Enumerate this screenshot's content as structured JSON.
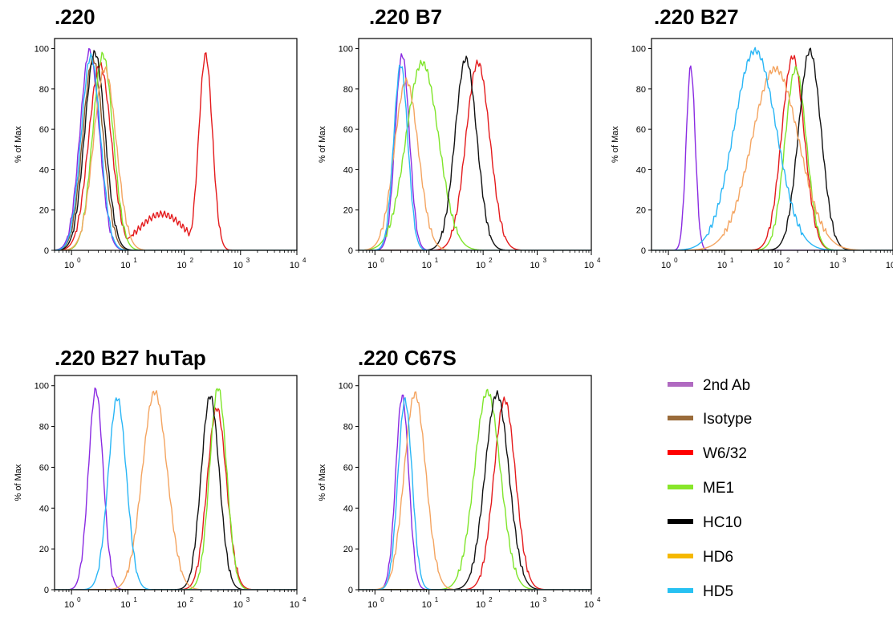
{
  "legend": [
    {
      "label": "2nd Ab",
      "color": "#b06ac1"
    },
    {
      "label": "Isotype",
      "color": "#9a6b3a"
    },
    {
      "label": "W6/32",
      "color": "#ff0000"
    },
    {
      "label": "ME1",
      "color": "#88e62a"
    },
    {
      "label": "HC10",
      "color": "#000000"
    },
    {
      "label": "HD6",
      "color": "#f5b800"
    },
    {
      "label": "HD5",
      "color": "#27c1f2"
    }
  ],
  "chart_data": [
    {
      "type": "line",
      "title": ".220",
      "ylabel": "% of Max",
      "x_scale": "log",
      "xlim": [
        0.5,
        10000
      ],
      "ylim": [
        0,
        105
      ],
      "x_tick_labels": [
        "10^0",
        "10^1",
        "10^2",
        "10^3",
        "10^4"
      ],
      "y_tick_labels": [
        "0",
        "20",
        "40",
        "60",
        "80",
        "100"
      ],
      "series": [
        {
          "name": "2nd Ab",
          "color": "#8a2be2",
          "peaks": [
            {
              "center": 2.1,
              "width": 0.17,
              "height": 99
            }
          ]
        },
        {
          "name": "Isotype",
          "color": "#8b5a2b",
          "peaks": [
            {
              "center": 2.4,
              "width": 0.18,
              "height": 95
            }
          ]
        },
        {
          "name": "W6/32",
          "color": "#e41a1c",
          "peaks": [
            {
              "center": 240,
              "width": 0.12,
              "height": 97
            },
            {
              "center": 40,
              "width": 0.4,
              "height": 18
            },
            {
              "center": 3.2,
              "width": 0.2,
              "height": 92
            }
          ]
        },
        {
          "name": "ME1",
          "color": "#7fe52a",
          "peaks": [
            {
              "center": 3.6,
              "width": 0.18,
              "height": 97
            }
          ]
        },
        {
          "name": "HC10",
          "color": "#111111",
          "peaks": [
            {
              "center": 2.6,
              "width": 0.18,
              "height": 98
            }
          ]
        },
        {
          "name": "HD6",
          "color": "#f4a460",
          "peaks": [
            {
              "center": 3.9,
              "width": 0.2,
              "height": 90
            }
          ]
        },
        {
          "name": "HD5",
          "color": "#29b6f6",
          "peaks": [
            {
              "center": 2.2,
              "width": 0.17,
              "height": 96
            }
          ]
        }
      ]
    },
    {
      "type": "line",
      "title": ".220 B7",
      "ylabel": "% of Max",
      "x_scale": "log",
      "xlim": [
        0.5,
        10000
      ],
      "ylim": [
        0,
        105
      ],
      "x_tick_labels": [
        "10^0",
        "10^1",
        "10^2",
        "10^3",
        "10^4"
      ],
      "y_tick_labels": [
        "0",
        "20",
        "40",
        "60",
        "80",
        "100"
      ],
      "series": [
        {
          "name": "2nd Ab",
          "color": "#8a2be2",
          "peaks": [
            {
              "center": 3.2,
              "width": 0.13,
              "height": 97
            }
          ]
        },
        {
          "name": "W6/32",
          "color": "#e41a1c",
          "peaks": [
            {
              "center": 80,
              "width": 0.22,
              "height": 93
            }
          ]
        },
        {
          "name": "ME1",
          "color": "#7fe52a",
          "peaks": [
            {
              "center": 7.5,
              "width": 0.3,
              "height": 93
            }
          ]
        },
        {
          "name": "HC10",
          "color": "#111111",
          "peaks": [
            {
              "center": 48,
              "width": 0.2,
              "height": 95
            }
          ]
        },
        {
          "name": "HD6",
          "color": "#f4a460",
          "peaks": [
            {
              "center": 3.8,
              "width": 0.22,
              "height": 84
            }
          ]
        },
        {
          "name": "HD5",
          "color": "#29b6f6",
          "peaks": [
            {
              "center": 3.0,
              "width": 0.13,
              "height": 92
            }
          ]
        }
      ]
    },
    {
      "type": "line",
      "title": ".220 B27",
      "ylabel": "% of Max",
      "x_scale": "log",
      "xlim": [
        0.5,
        10000
      ],
      "ylim": [
        0,
        105
      ],
      "x_tick_labels": [
        "10^0",
        "10^1",
        "10^2",
        "10^3",
        "10^4"
      ],
      "y_tick_labels": [
        "0",
        "20",
        "40",
        "60",
        "80",
        "100"
      ],
      "series": [
        {
          "name": "2nd Ab",
          "color": "#8a2be2",
          "peaks": [
            {
              "center": 2.5,
              "width": 0.08,
              "height": 91
            }
          ]
        },
        {
          "name": "W6/32",
          "color": "#e41a1c",
          "peaks": [
            {
              "center": 165,
              "width": 0.2,
              "height": 96
            }
          ]
        },
        {
          "name": "ME1",
          "color": "#7fe52a",
          "peaks": [
            {
              "center": 185,
              "width": 0.19,
              "height": 90
            }
          ]
        },
        {
          "name": "HC10",
          "color": "#111111",
          "peaks": [
            {
              "center": 330,
              "width": 0.2,
              "height": 99
            }
          ]
        },
        {
          "name": "HD6",
          "color": "#f4a460",
          "peaks": [
            {
              "center": 80,
              "width": 0.42,
              "height": 90
            }
          ]
        },
        {
          "name": "HD5",
          "color": "#29b6f6",
          "peaks": [
            {
              "center": 35,
              "width": 0.38,
              "height": 99
            }
          ]
        }
      ]
    },
    {
      "type": "line",
      "title": ".220 B27 huTap",
      "ylabel": "% of Max",
      "x_scale": "log",
      "xlim": [
        0.5,
        10000
      ],
      "ylim": [
        0,
        105
      ],
      "x_tick_labels": [
        "10^0",
        "10^1",
        "10^2",
        "10^3",
        "10^4"
      ],
      "y_tick_labels": [
        "0",
        "20",
        "40",
        "60",
        "80",
        "100"
      ],
      "series": [
        {
          "name": "2nd Ab",
          "color": "#8a2be2",
          "peaks": [
            {
              "center": 2.7,
              "width": 0.13,
              "height": 98
            }
          ]
        },
        {
          "name": "W6/32",
          "color": "#e41a1c",
          "peaks": [
            {
              "center": 380,
              "width": 0.17,
              "height": 89
            }
          ]
        },
        {
          "name": "ME1",
          "color": "#7fe52a",
          "peaks": [
            {
              "center": 400,
              "width": 0.15,
              "height": 99
            }
          ]
        },
        {
          "name": "HC10",
          "color": "#111111",
          "peaks": [
            {
              "center": 290,
              "width": 0.16,
              "height": 95
            }
          ]
        },
        {
          "name": "HD6",
          "color": "#f4a460",
          "peaks": [
            {
              "center": 30,
              "width": 0.22,
              "height": 97
            }
          ]
        },
        {
          "name": "HD5",
          "color": "#29b6f6",
          "peaks": [
            {
              "center": 6.5,
              "width": 0.16,
              "height": 94
            }
          ]
        }
      ]
    },
    {
      "type": "line",
      "title": ".220 C67S",
      "ylabel": "% of Max",
      "x_scale": "log",
      "xlim": [
        0.5,
        10000
      ],
      "ylim": [
        0,
        105
      ],
      "x_tick_labels": [
        "10^0",
        "10^1",
        "10^2",
        "10^3",
        "10^4"
      ],
      "y_tick_labels": [
        "0",
        "20",
        "40",
        "60",
        "80",
        "100"
      ],
      "series": [
        {
          "name": "2nd Ab",
          "color": "#8a2be2",
          "peaks": [
            {
              "center": 3.2,
              "width": 0.12,
              "height": 95
            }
          ]
        },
        {
          "name": "W6/32",
          "color": "#e41a1c",
          "peaks": [
            {
              "center": 250,
              "width": 0.2,
              "height": 93
            }
          ]
        },
        {
          "name": "ME1",
          "color": "#7fe52a",
          "peaks": [
            {
              "center": 120,
              "width": 0.24,
              "height": 97
            }
          ]
        },
        {
          "name": "HC10",
          "color": "#111111",
          "peaks": [
            {
              "center": 180,
              "width": 0.22,
              "height": 96
            }
          ]
        },
        {
          "name": "HD6",
          "color": "#f4a460",
          "peaks": [
            {
              "center": 5.5,
              "width": 0.2,
              "height": 96
            }
          ]
        },
        {
          "name": "HD5",
          "color": "#29b6f6",
          "peaks": [
            {
              "center": 3.6,
              "width": 0.13,
              "height": 93
            }
          ]
        }
      ]
    }
  ]
}
